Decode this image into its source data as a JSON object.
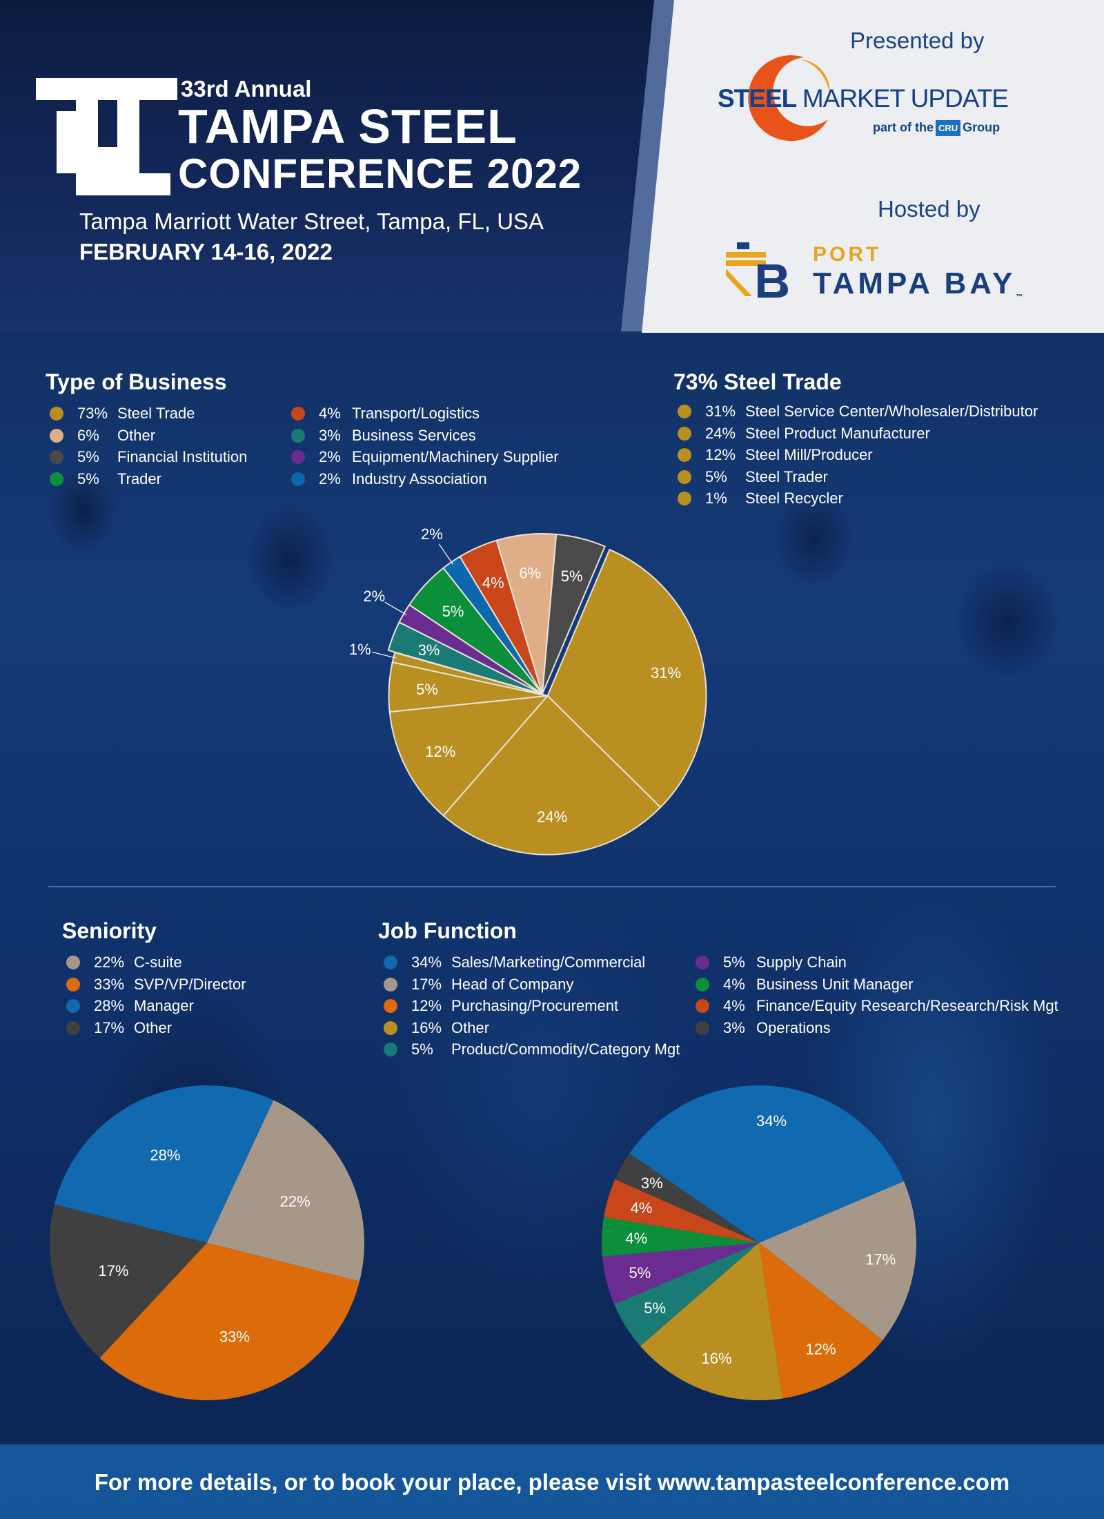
{
  "header": {
    "annual": "33rd Annual",
    "title_line1": "TAMPA STEEL",
    "title_line2": "CONFERENCE 2022",
    "venue": "Tampa Marriott Water Street, Tampa, FL, USA",
    "dates": "FEBRUARY 14-16, 2022",
    "presented_by": "Presented by",
    "hosted_by": "Hosted by",
    "presenter": {
      "name_bold": "STEEL",
      "name_rest": "MARKET UPDATE",
      "sub_prefix": "part of the",
      "sub_badge": "CRU",
      "sub_suffix": "Group"
    },
    "host": {
      "line1": "PORT",
      "line2": "TAMPA BAY",
      "tm": "™"
    }
  },
  "colors": {
    "steel": "#b98f22",
    "other_peach": "#dfae88",
    "financial": "#4a4a4a",
    "trader": "#0b8f3b",
    "transport": "#c8461a",
    "business": "#1a7a74",
    "equipment": "#6b2c91",
    "association": "#0c67ad",
    "beige": "#a69788",
    "orange": "#dc6b0a",
    "blue": "#1169b0",
    "dark": "#404040"
  },
  "type_of_business": {
    "title": "Type of Business",
    "legend": [
      {
        "pct": "73%",
        "label": "Steel Trade",
        "color": "#b98f22"
      },
      {
        "pct": "6%",
        "label": "Other",
        "color": "#dfae88"
      },
      {
        "pct": "5%",
        "label": "Financial Institution",
        "color": "#4a4a4a"
      },
      {
        "pct": "5%",
        "label": "Trader",
        "color": "#0b8f3b"
      },
      {
        "pct": "4%",
        "label": "Transport/Logistics",
        "color": "#c8461a"
      },
      {
        "pct": "3%",
        "label": "Business Services",
        "color": "#1a7a74"
      },
      {
        "pct": "2%",
        "label": "Equipment/Machinery Supplier",
        "color": "#6b2c91"
      },
      {
        "pct": "2%",
        "label": "Industry Association",
        "color": "#0c67ad"
      }
    ]
  },
  "steel_trade": {
    "title": "73% Steel Trade",
    "legend": [
      {
        "pct": "31%",
        "label": "Steel Service Center/Wholesaler/Distributor",
        "color": "#b98f22"
      },
      {
        "pct": "24%",
        "label": "Steel Product Manufacturer",
        "color": "#b98f22"
      },
      {
        "pct": "12%",
        "label": "Steel Mill/Producer",
        "color": "#b98f22"
      },
      {
        "pct": "5%",
        "label": "Steel Trader",
        "color": "#b98f22"
      },
      {
        "pct": "1%",
        "label": "Steel Recycler",
        "color": "#b98f22"
      }
    ]
  },
  "seniority": {
    "title": "Seniority",
    "legend": [
      {
        "pct": "22%",
        "label": "C-suite",
        "color": "#a69788"
      },
      {
        "pct": "33%",
        "label": "SVP/VP/Director",
        "color": "#dc6b0a"
      },
      {
        "pct": "28%",
        "label": "Manager",
        "color": "#1169b0"
      },
      {
        "pct": "17%",
        "label": "Other",
        "color": "#404040"
      }
    ]
  },
  "job_function": {
    "title": "Job Function",
    "legend_col1": [
      {
        "pct": "34%",
        "label": "Sales/Marketing/Commercial",
        "color": "#1169b0"
      },
      {
        "pct": "17%",
        "label": "Head of Company",
        "color": "#a69788"
      },
      {
        "pct": "12%",
        "label": "Purchasing/Procurement",
        "color": "#dc6b0a"
      },
      {
        "pct": "16%",
        "label": "Other",
        "color": "#b98f22"
      },
      {
        "pct": "5%",
        "label": "Product/Commodity/Category Mgt",
        "color": "#1a7a74"
      }
    ],
    "legend_col2": [
      {
        "pct": "5%",
        "label": "Supply Chain",
        "color": "#6b2c91"
      },
      {
        "pct": "4%",
        "label": "Business Unit Manager",
        "color": "#0b8f3b"
      },
      {
        "pct": "4%",
        "label": "Finance/Equity Research/Research/Risk Mgt",
        "color": "#c8461a"
      },
      {
        "pct": "3%",
        "label": "Operations",
        "color": "#404040"
      }
    ]
  },
  "chart_data": [
    {
      "type": "pie",
      "title": "Type of Business",
      "categories": [
        "Steel Service Center/Wholesaler/Distributor",
        "Steel Product Manufacturer",
        "Steel Mill/Producer",
        "Steel Trader",
        "Steel Recycler",
        "Business Services",
        "Equipment/Machinery Supplier",
        "Trader",
        "Industry Association",
        "Transport/Logistics",
        "Other",
        "Financial Institution"
      ],
      "values": [
        31,
        24,
        12,
        5,
        1,
        3,
        2,
        5,
        2,
        4,
        6,
        5
      ],
      "labels": [
        "31%",
        "24%",
        "12%",
        "5%",
        "1%",
        "3%",
        "2%",
        "5%",
        "2%",
        "4%",
        "6%",
        "5%"
      ],
      "colors": [
        "#b98f22",
        "#b98f22",
        "#b98f22",
        "#b98f22",
        "#b98f22",
        "#1a7a74",
        "#6b2c91",
        "#0b8f3b",
        "#0c67ad",
        "#c8461a",
        "#dfae88",
        "#4a4a4a"
      ],
      "exploded": [
        true,
        true,
        true,
        true,
        true,
        false,
        false,
        false,
        false,
        false,
        false,
        false
      ]
    },
    {
      "type": "pie",
      "title": "Seniority",
      "categories": [
        "C-suite",
        "SVP/VP/Director",
        "Other",
        "Manager"
      ],
      "values": [
        22,
        33,
        17,
        28
      ],
      "labels": [
        "22%",
        "33%",
        "17%",
        "28%"
      ],
      "colors": [
        "#a69788",
        "#dc6b0a",
        "#404040",
        "#1169b0"
      ]
    },
    {
      "type": "pie",
      "title": "Job Function",
      "categories": [
        "Head of Company",
        "Purchasing/Procurement",
        "Other",
        "Product/Commodity/Category Mgt",
        "Supply Chain",
        "Business Unit Manager",
        "Finance/Equity Research/Research/Risk Mgt",
        "Operations",
        "Sales/Marketing/Commercial"
      ],
      "values": [
        17,
        12,
        16,
        5,
        5,
        4,
        4,
        3,
        34
      ],
      "labels": [
        "17%",
        "12%",
        "16%",
        "5%",
        "5%",
        "4%",
        "4%",
        "3%",
        "34%"
      ],
      "colors": [
        "#a69788",
        "#dc6b0a",
        "#b98f22",
        "#1a7a74",
        "#6b2c91",
        "#0b8f3b",
        "#c8461a",
        "#404040",
        "#1169b0"
      ]
    }
  ],
  "footer": {
    "text": "For more details, or to book your place, please visit www.tampasteelconference.com"
  }
}
